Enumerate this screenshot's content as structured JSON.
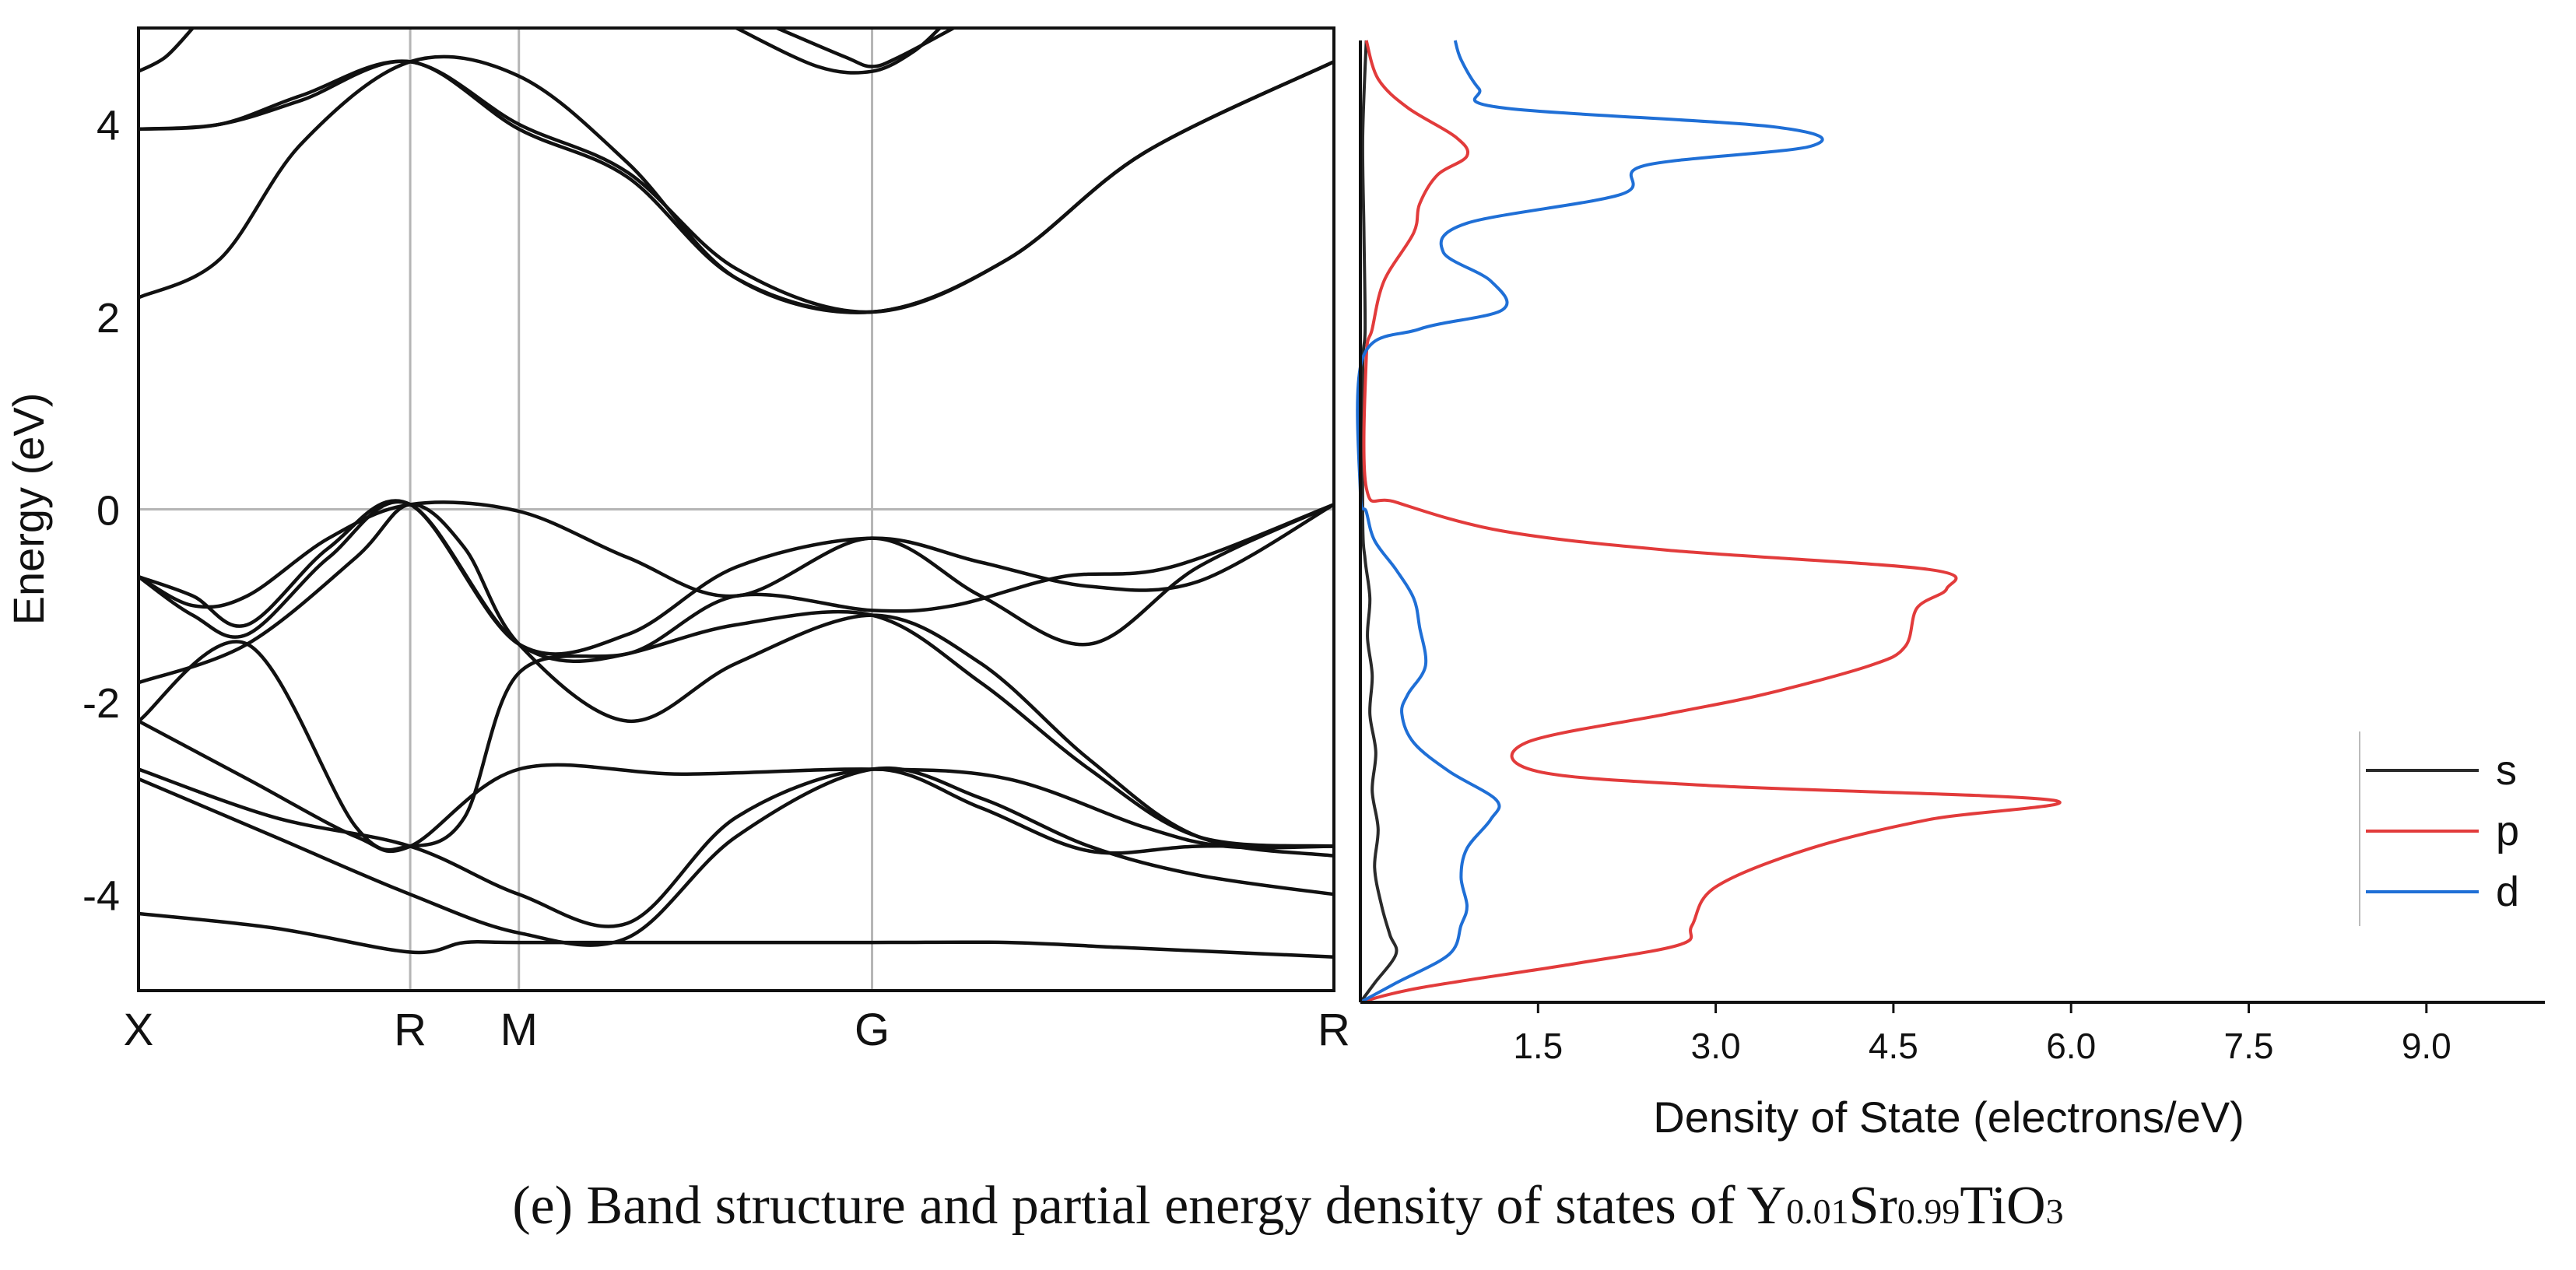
{
  "chart_data": [
    {
      "type": "line",
      "title": "",
      "xlabel": "",
      "ylabel": "Energy (eV)",
      "ylim": [
        -5,
        5
      ],
      "yticks": [
        -4,
        -2,
        0,
        2,
        4
      ],
      "k_points": [
        "X",
        "R",
        "M",
        "G",
        "R"
      ],
      "k_positions": [
        0,
        1.0,
        1.4,
        2.7,
        4.4
      ],
      "fermi_level": 0,
      "series": [
        {
          "name": "band-1",
          "x": [
            0,
            0.5,
            1.0,
            1.2,
            1.4,
            2.0,
            2.7,
            3.2,
            3.6,
            4.0,
            4.4
          ],
          "y": [
            -4.2,
            -4.35,
            -4.6,
            -4.5,
            -4.5,
            -4.5,
            -4.5,
            -4.5,
            -4.55,
            -4.6,
            -4.65
          ]
        },
        {
          "name": "band-2",
          "x": [
            0,
            0.5,
            1.0,
            1.4,
            1.8,
            2.2,
            2.7,
            3.1,
            3.5,
            3.9,
            4.4
          ],
          "y": [
            -2.8,
            -3.4,
            -4.0,
            -4.4,
            -4.45,
            -3.4,
            -2.7,
            -3.0,
            -3.5,
            -3.8,
            -4.0
          ]
        },
        {
          "name": "band-3",
          "x": [
            0,
            0.5,
            1.0,
            1.4,
            1.8,
            2.2,
            2.7,
            3.1,
            3.5,
            3.9,
            4.4
          ],
          "y": [
            -2.7,
            -3.2,
            -3.5,
            -4.0,
            -4.3,
            -3.2,
            -2.7,
            -3.1,
            -3.55,
            -3.5,
            -3.5
          ]
        },
        {
          "name": "band-4",
          "x": [
            0,
            0.4,
            0.8,
            1.0,
            1.4,
            2.0,
            2.7,
            3.2,
            3.7,
            4.0,
            4.4
          ],
          "y": [
            -2.2,
            -2.8,
            -3.4,
            -3.5,
            -2.7,
            -2.75,
            -2.7,
            -2.8,
            -3.3,
            -3.5,
            -3.5
          ]
        },
        {
          "name": "band-5",
          "x": [
            0,
            0.4,
            0.8,
            1.0,
            1.2,
            1.4,
            1.8,
            2.2,
            2.7,
            3.1,
            3.5,
            3.9,
            4.4
          ],
          "y": [
            -2.2,
            -1.4,
            -3.3,
            -3.5,
            -3.2,
            -1.7,
            -1.5,
            -1.2,
            -1.1,
            -1.8,
            -2.7,
            -3.4,
            -3.5
          ]
        },
        {
          "name": "band-6",
          "x": [
            0,
            0.4,
            0.8,
            1.0,
            1.2,
            1.4,
            1.8,
            2.2,
            2.7,
            3.1,
            3.5,
            3.9,
            4.4
          ],
          "y": [
            -1.8,
            -1.4,
            -0.5,
            0.05,
            -0.4,
            -1.4,
            -2.2,
            -1.6,
            -1.1,
            -1.6,
            -2.6,
            -3.4,
            -3.6
          ]
        },
        {
          "name": "band-7",
          "x": [
            0,
            0.2,
            0.4,
            0.7,
            1.0,
            1.4,
            1.8,
            2.2,
            2.7,
            3.1,
            3.5,
            3.9,
            4.4
          ],
          "y": [
            -0.7,
            -1.0,
            -0.9,
            -0.3,
            0.05,
            -0.02,
            -0.5,
            -0.9,
            -0.3,
            -0.9,
            -1.4,
            -0.6,
            0.05
          ]
        },
        {
          "name": "band-8",
          "x": [
            0,
            0.2,
            0.4,
            0.7,
            1.0,
            1.4,
            1.8,
            2.2,
            2.7,
            3.0,
            3.4,
            3.8,
            4.4
          ],
          "y": [
            -0.7,
            -1.1,
            -1.3,
            -0.5,
            0.05,
            -1.4,
            -1.5,
            -0.9,
            -1.05,
            -1.0,
            -0.7,
            -0.6,
            0.05
          ]
        },
        {
          "name": "band-9",
          "x": [
            0,
            0.2,
            0.4,
            0.7,
            1.0,
            1.4,
            1.8,
            2.2,
            2.7,
            3.1,
            3.5,
            3.9,
            4.4
          ],
          "y": [
            -0.7,
            -0.9,
            -1.2,
            -0.4,
            0.05,
            -1.4,
            -1.3,
            -0.6,
            -0.3,
            -0.55,
            -0.8,
            -0.75,
            0.05
          ]
        },
        {
          "name": "band-10",
          "x": [
            0,
            0.3,
            0.6,
            1.0,
            1.4,
            1.8,
            2.2,
            2.7,
            3.2,
            3.7,
            4.4
          ],
          "y": [
            2.2,
            2.6,
            3.8,
            4.65,
            4.5,
            3.6,
            2.4,
            2.05,
            2.6,
            3.7,
            4.65
          ]
        },
        {
          "name": "band-11",
          "x": [
            0,
            0.3,
            0.6,
            1.0,
            1.4,
            1.8,
            2.2,
            2.7,
            3.2,
            3.7,
            4.4
          ],
          "y": [
            3.95,
            4.0,
            4.3,
            4.65,
            4.0,
            3.5,
            2.5,
            2.05,
            2.6,
            3.7,
            4.65
          ]
        },
        {
          "name": "band-12",
          "x": [
            0,
            0.3,
            0.6,
            1.0,
            1.4,
            1.8,
            2.2,
            2.7,
            3.2,
            3.7,
            4.4
          ],
          "y": [
            3.95,
            4.0,
            4.25,
            4.65,
            3.95,
            3.45,
            2.4,
            2.05,
            2.6,
            3.7,
            4.65
          ]
        },
        {
          "name": "band-13",
          "x": [
            0,
            0.1,
            0.2
          ],
          "y": [
            4.55,
            4.7,
            5.0
          ]
        },
        {
          "name": "band-14",
          "x": [
            2.2,
            2.5,
            2.7,
            2.85,
            2.95
          ],
          "y": [
            5.0,
            4.6,
            4.55,
            4.75,
            5.0
          ]
        },
        {
          "name": "band-15",
          "x": [
            2.35,
            2.6,
            2.7,
            2.8,
            3.0
          ],
          "y": [
            5.0,
            4.7,
            4.6,
            4.7,
            5.0
          ]
        }
      ]
    },
    {
      "type": "line",
      "title": "",
      "xlabel": "Density of State (electrons/eV)",
      "ylabel": "",
      "ylim": [
        -5,
        5
      ],
      "xlim": [
        0,
        10.0
      ],
      "xticks": [
        1.5,
        3.0,
        4.5,
        6.0,
        7.5,
        9.0
      ],
      "xtick_labels": [
        "1.5",
        "3.0",
        "4.5",
        "6.0",
        "7.5",
        "9.0"
      ],
      "legend": "bottom-right",
      "series": [
        {
          "name": "s",
          "color": "#2a2a2a",
          "energy": [
            -5.0,
            -4.8,
            -4.5,
            -4.3,
            -4.0,
            -3.6,
            -3.2,
            -2.8,
            -2.4,
            -2.0,
            -1.6,
            -1.2,
            -0.8,
            -0.4,
            0.0,
            1.6,
            2.0,
            3.0,
            4.0,
            5.0
          ],
          "dos": [
            0,
            0.12,
            0.3,
            0.25,
            0.18,
            0.12,
            0.15,
            0.1,
            0.13,
            0.08,
            0.1,
            0.06,
            0.08,
            0.04,
            0.02,
            0.02,
            0.04,
            0.03,
            0.02,
            0.05
          ]
        },
        {
          "name": "p",
          "color": "#e23b3b",
          "energy": [
            -5.0,
            -4.85,
            -4.6,
            -4.4,
            -4.2,
            -3.8,
            -3.4,
            -3.1,
            -2.9,
            -2.75,
            -2.6,
            -2.3,
            -2.0,
            -1.8,
            -1.5,
            -1.3,
            -0.9,
            -0.7,
            -0.5,
            -0.3,
            -0.1,
            0.2,
            0.35,
            1.7,
            2.0,
            2.5,
            3.0,
            3.3,
            3.6,
            3.8,
            4.0,
            4.3,
            4.6,
            5.0
          ],
          "dos": [
            0,
            0.5,
            1.8,
            2.7,
            2.8,
            3.0,
            3.8,
            4.8,
            5.85,
            3.0,
            1.5,
            1.4,
            2.6,
            3.4,
            4.3,
            4.6,
            4.7,
            4.95,
            4.8,
            2.6,
            1.2,
            0.3,
            0.05,
            0.05,
            0.1,
            0.2,
            0.45,
            0.5,
            0.65,
            0.9,
            0.8,
            0.4,
            0.15,
            0.05
          ]
        },
        {
          "name": "d",
          "color": "#1f6fd6",
          "energy": [
            -5.0,
            -4.8,
            -4.5,
            -4.2,
            -4.0,
            -3.7,
            -3.4,
            -3.1,
            -2.9,
            -2.6,
            -2.3,
            -2.0,
            -1.8,
            -1.5,
            -1.1,
            -0.8,
            -0.5,
            -0.2,
            0.1,
            0.3,
            1.7,
            2.0,
            2.2,
            2.5,
            2.8,
            3.1,
            3.4,
            3.7,
            3.9,
            4.1,
            4.3,
            4.5,
            4.8,
            5.0
          ],
          "dos": [
            0,
            0.3,
            0.75,
            0.85,
            0.9,
            0.85,
            0.9,
            1.1,
            1.15,
            0.75,
            0.45,
            0.35,
            0.4,
            0.55,
            0.5,
            0.45,
            0.3,
            0.12,
            0.05,
            0.0,
            0.02,
            0.5,
            1.2,
            1.1,
            0.7,
            0.9,
            2.2,
            2.4,
            3.8,
            3.5,
            1.2,
            1.0,
            0.85,
            0.8
          ]
        }
      ]
    }
  ],
  "caption": {
    "prefix": "(e)  Band structure and partial energy density of states of Y",
    "sub1": "0.01",
    "mid": "Sr",
    "sub2": "0.99",
    "suffix": "TiO",
    "sub3": "3"
  }
}
